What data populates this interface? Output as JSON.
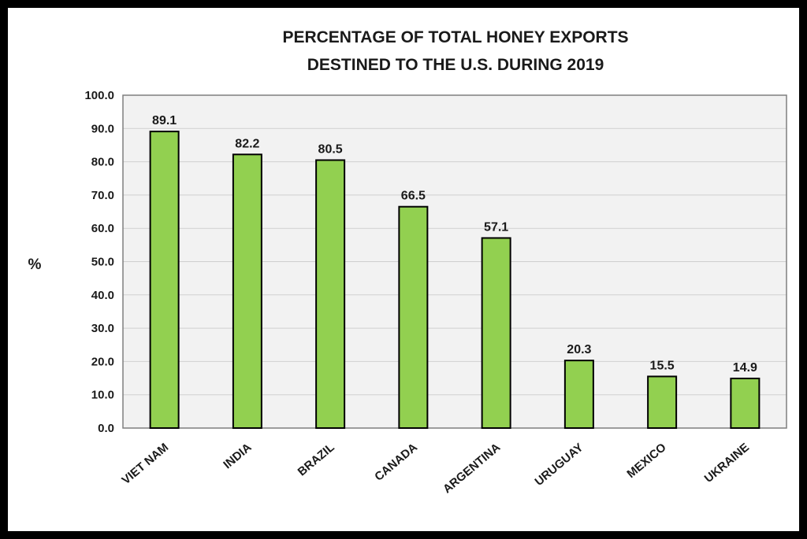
{
  "chart_data": {
    "type": "bar",
    "title_lines": [
      "PERCENTAGE OF TOTAL HONEY EXPORTS",
      "DESTINED TO THE U.S. DURING 2019"
    ],
    "ylabel": "%",
    "xlabel": "",
    "categories": [
      "VIET NAM",
      "INDIA",
      "BRAZIL",
      "CANADA",
      "ARGENTINA",
      "URUGUAY",
      "MEXICO",
      "UKRAINE"
    ],
    "values": [
      89.1,
      82.2,
      80.5,
      66.5,
      57.1,
      20.3,
      15.5,
      14.9
    ],
    "data_labels": [
      "89.1",
      "82.2",
      "80.5",
      "66.5",
      "57.1",
      "20.3",
      "15.5",
      "14.9"
    ],
    "ylim": [
      0,
      100
    ],
    "yticks": [
      "0.0",
      "10.0",
      "20.0",
      "30.0",
      "40.0",
      "50.0",
      "60.0",
      "70.0",
      "80.0",
      "90.0",
      "100.0"
    ],
    "grid": true,
    "bar_color": "#92d050",
    "bar_edge_color": "#000000",
    "plot_background": "#f2f2f2"
  }
}
